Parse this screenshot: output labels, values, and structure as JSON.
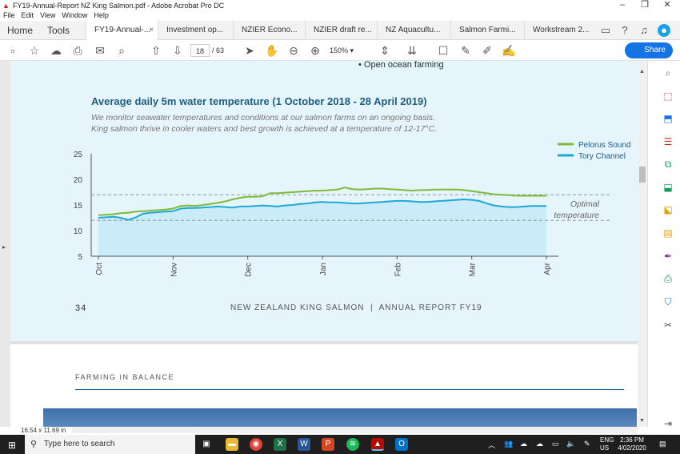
{
  "window": {
    "title": "FY19-Annual-Report NZ King Salmon.pdf - Adobe Acrobat Pro DC",
    "controls": [
      "–",
      "❐",
      "✕"
    ]
  },
  "menu": [
    "File",
    "Edit",
    "View",
    "Window",
    "Help"
  ],
  "tabs": {
    "home": "Home",
    "tools": "Tools",
    "docs": [
      {
        "label": "FY19-Annual-...",
        "active": true,
        "close": "×"
      },
      {
        "label": "Investment op..."
      },
      {
        "label": "NZIER Econo..."
      },
      {
        "label": "NZIER draft re..."
      },
      {
        "label": "NZ Aquacultu..."
      },
      {
        "label": "Salmon Farmi..."
      },
      {
        "label": "Workstream 2..."
      }
    ]
  },
  "toolbar": {
    "page_current": "18",
    "page_total": "/ 63",
    "zoom": "150%",
    "share": "Share"
  },
  "document": {
    "bullet": "Open ocean farming",
    "chart_title": "Average daily 5m water temperature (1 October 2018 - 28 April 2019)",
    "subtitle_line1": "We monitor seawater temperatures and conditions at our salmon farms on an ongoing basis.",
    "subtitle_line2": "King salmon thrive in cooler waters and best growth is achieved at a temperature of 12-17°C.",
    "page_number": "34",
    "footer": "NEW ZEALAND KING SALMON  |  ANNUAL REPORT FY19",
    "next_section": "FARMING IN BALANCE"
  },
  "status": {
    "page_size": "16.54 x 11.69 in"
  },
  "chart_data": {
    "type": "line",
    "x": [
      "Oct",
      "",
      "",
      "",
      "",
      "",
      "",
      "",
      "",
      "",
      "Nov",
      "",
      "",
      "",
      "",
      "",
      "",
      "",
      "",
      "",
      "Dec",
      "",
      "",
      "",
      "",
      "",
      "",
      "",
      "",
      "",
      "Jan",
      "",
      "",
      "",
      "",
      "",
      "",
      "",
      "",
      "",
      "Feb",
      "",
      "",
      "",
      "",
      "",
      "",
      "",
      "",
      "",
      "Mar",
      "",
      "",
      "",
      "",
      "",
      "",
      "",
      "",
      "",
      "Apr"
    ],
    "xticks": [
      "Oct",
      "Nov",
      "Dec",
      "Jan",
      "Feb",
      "Mar",
      "Apr"
    ],
    "yticks": [
      5,
      10,
      15,
      20,
      25
    ],
    "ylim": [
      5,
      25
    ],
    "series": [
      {
        "name": "Pelorus Sound",
        "color": "#7dbb3b",
        "values": [
          13.0,
          13.1,
          13.2,
          13.4,
          13.5,
          13.7,
          13.8,
          13.9,
          14.0,
          14.1,
          14.3,
          14.8,
          14.9,
          14.8,
          15.0,
          15.2,
          15.4,
          15.7,
          16.1,
          16.4,
          16.6,
          16.6,
          16.7,
          17.3,
          17.3,
          17.4,
          17.5,
          17.6,
          17.7,
          17.8,
          17.8,
          17.9,
          18.0,
          18.4,
          18.1,
          18.0,
          18.1,
          18.2,
          18.2,
          18.1,
          18.0,
          17.9,
          17.8,
          17.9,
          17.9,
          18.0,
          18.0,
          18.0,
          18.0,
          17.9,
          17.7,
          17.5,
          17.3,
          17.1,
          17.0,
          16.9,
          16.8,
          16.8,
          16.8,
          16.8,
          16.8
        ]
      },
      {
        "name": "Tory Channel",
        "color": "#1fa8d6",
        "values": [
          12.5,
          12.6,
          12.7,
          12.5,
          12.1,
          12.6,
          13.3,
          13.5,
          13.6,
          13.7,
          13.8,
          14.3,
          14.4,
          14.4,
          14.5,
          14.6,
          14.7,
          14.6,
          14.5,
          14.7,
          14.7,
          14.8,
          14.9,
          14.8,
          14.7,
          14.9,
          15.0,
          15.2,
          15.3,
          15.5,
          15.6,
          15.5,
          15.5,
          15.4,
          15.3,
          15.3,
          15.4,
          15.5,
          15.6,
          15.7,
          15.8,
          15.8,
          15.7,
          15.6,
          15.6,
          15.7,
          15.8,
          15.9,
          16.0,
          16.1,
          16.0,
          15.8,
          15.3,
          14.9,
          14.7,
          14.6,
          14.6,
          14.7,
          14.8,
          14.8,
          14.8
        ]
      }
    ],
    "optimal_band": [
      12,
      17
    ],
    "optimal_label_line1": "Optimal",
    "optimal_label_line2": "temperature",
    "legend_position": "top-right"
  },
  "taskbar": {
    "search": "Type here to search",
    "lang1": "ENG",
    "lang2": "US",
    "time": "2:36 PM",
    "date": "4/02/2020"
  }
}
